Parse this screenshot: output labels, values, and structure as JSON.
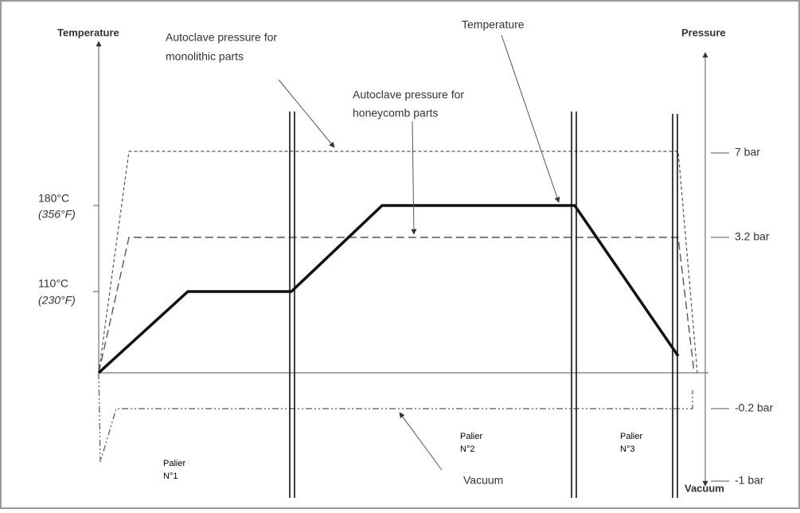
{
  "left_axis": {
    "title": "Temperature",
    "ticks": [
      {
        "label": "180°C",
        "sublabel": "(356°F)"
      },
      {
        "label": "110°C",
        "sublabel": "(230°F)"
      }
    ]
  },
  "right_axis": {
    "title": "Pressure",
    "bottom_title": "Vacuum",
    "ticks": [
      "7 bar",
      "3.2 bar",
      "-0.2 bar",
      "-1 bar"
    ]
  },
  "annotations": [
    {
      "lines": [
        "Autoclave pressure for",
        "monolithic parts"
      ]
    },
    {
      "lines": [
        "Temperature"
      ]
    },
    {
      "lines": [
        "Autoclave pressure for",
        "honeycomb parts"
      ]
    },
    {
      "lines": [
        "Vacuum"
      ]
    }
  ],
  "stages": [
    {
      "lines": [
        "Palier",
        "N°1"
      ]
    },
    {
      "lines": [
        "Palier",
        "N°2"
      ]
    },
    {
      "lines": [
        "Palier",
        "N°3"
      ]
    }
  ]
}
